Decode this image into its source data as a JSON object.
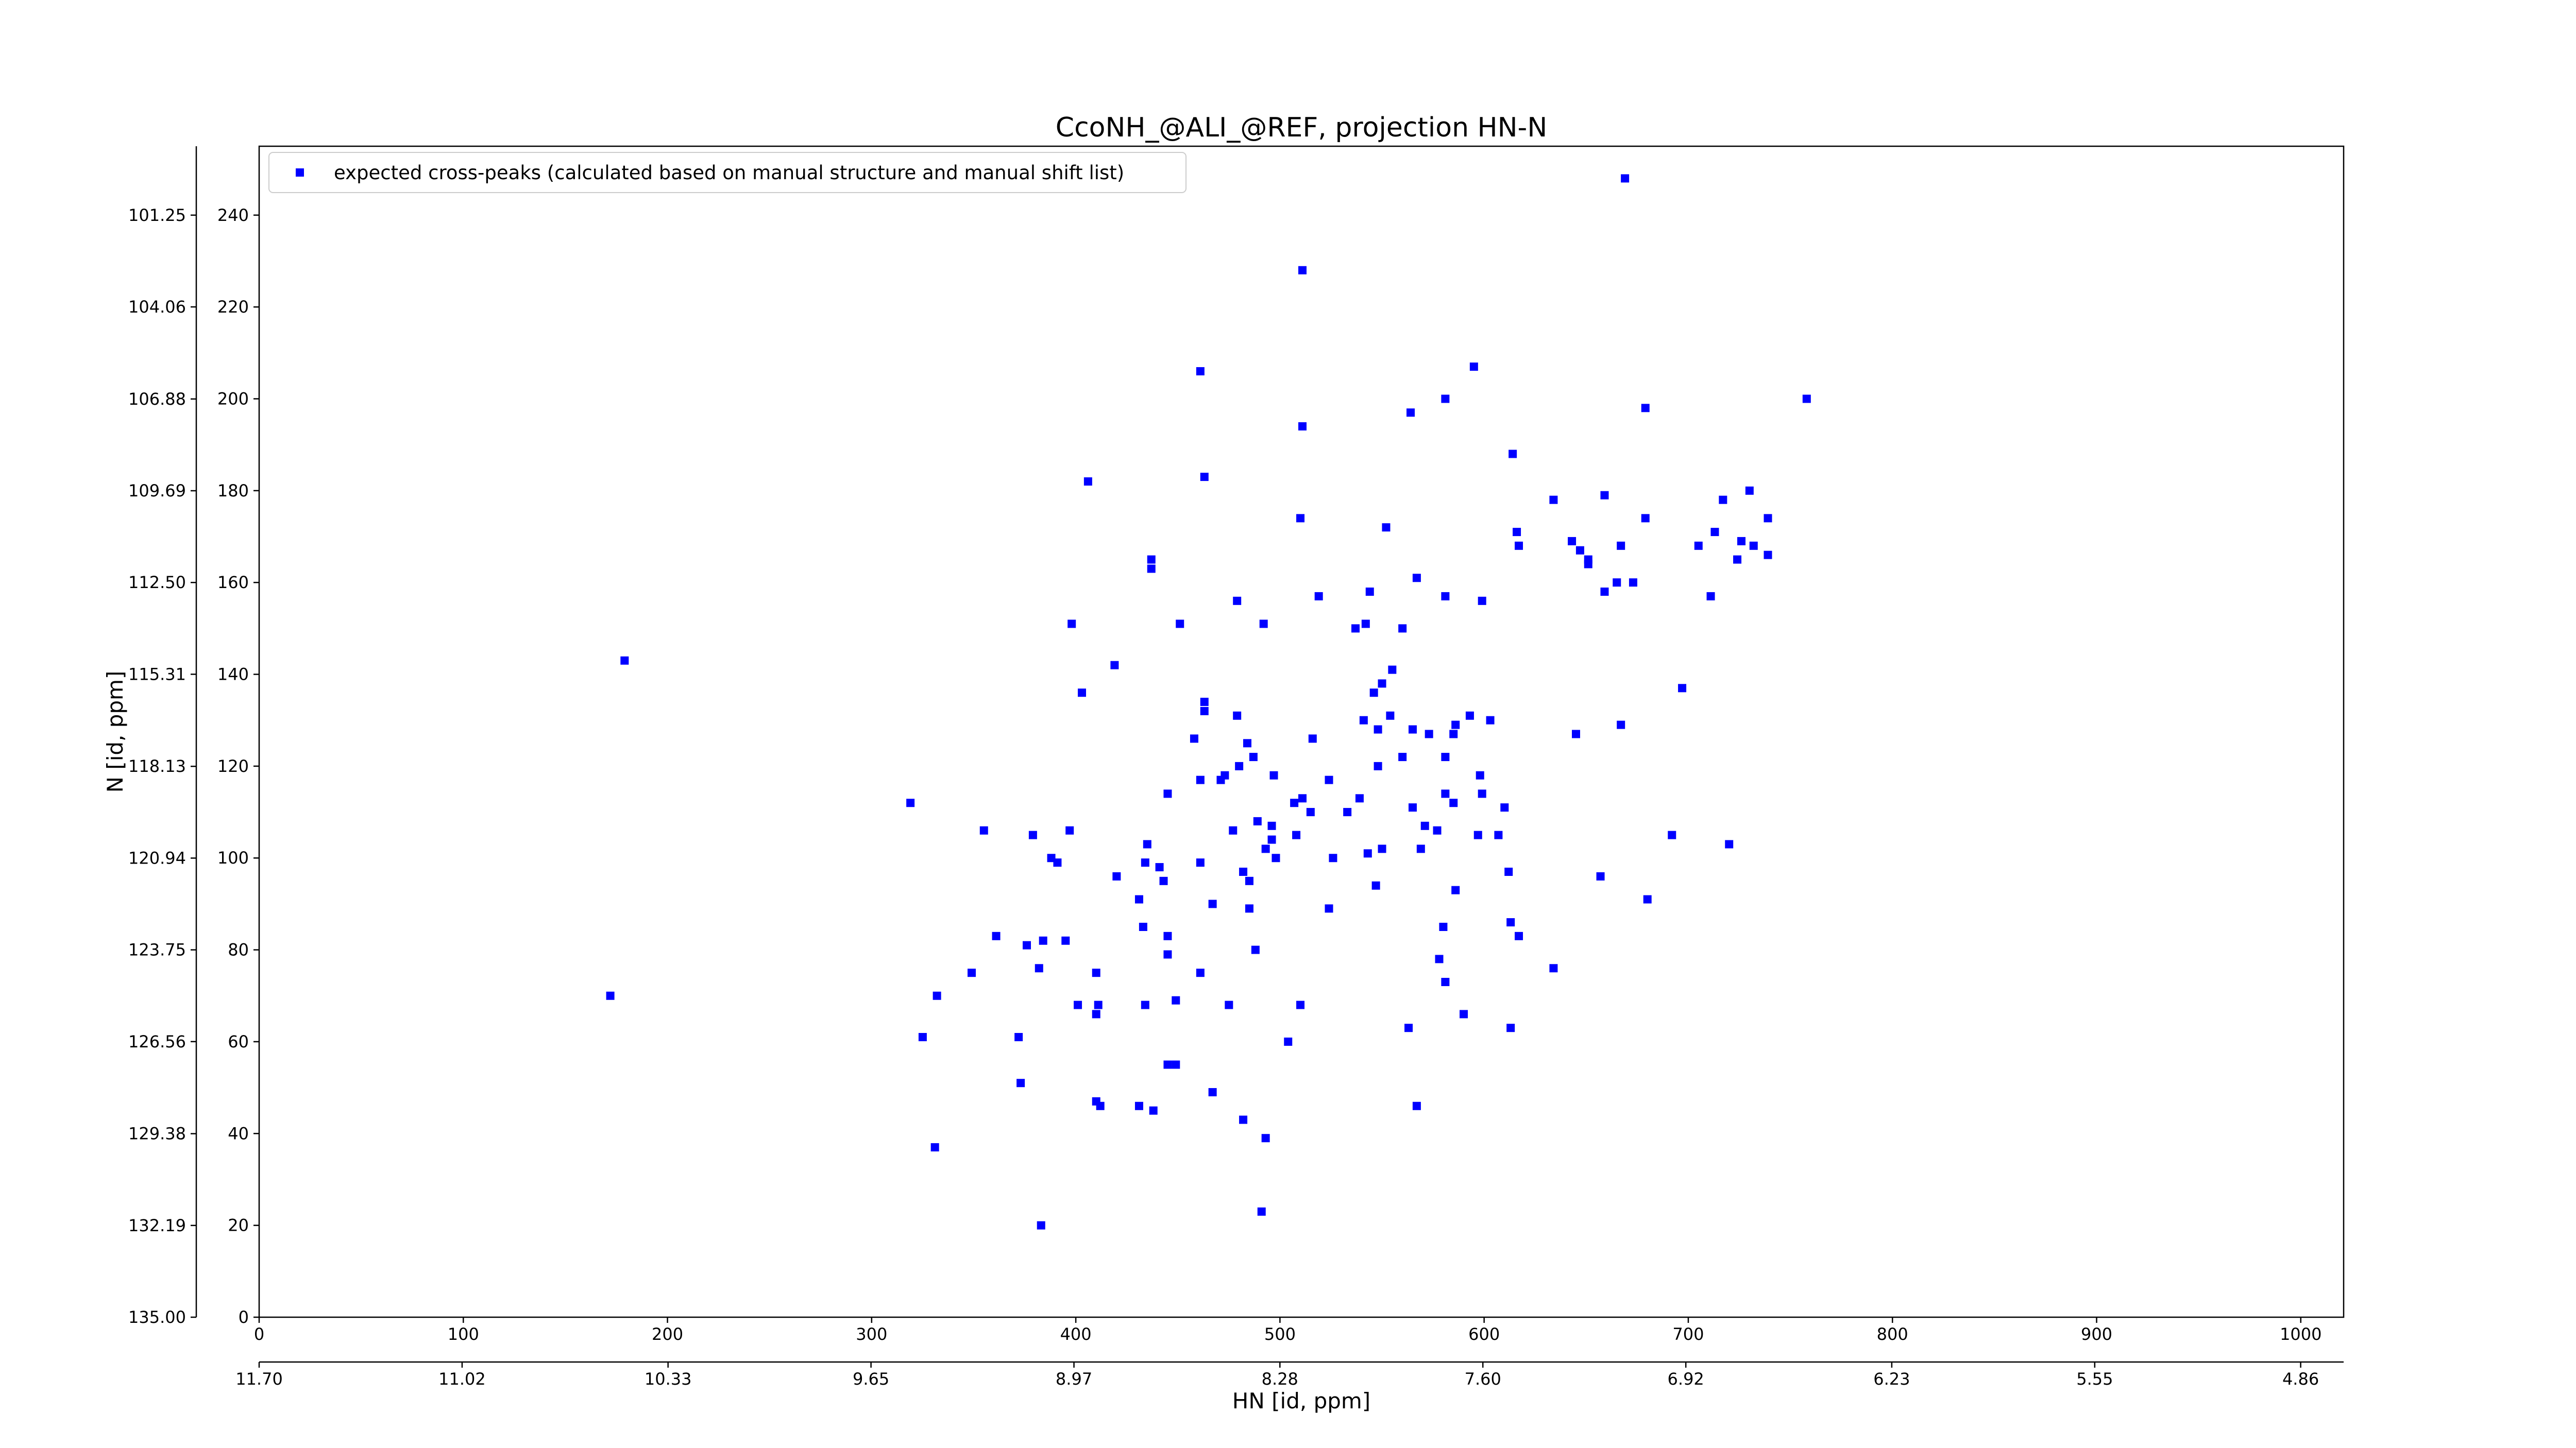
{
  "chart_data": {
    "type": "scatter",
    "title": "CcoNH_@ALI_@REF, projection HN-N",
    "x_label": "HN [id, ppm]",
    "y_label": "N [id, ppm]",
    "legend": "upper left",
    "xlim": [
      0,
      1021
    ],
    "ylim": [
      0,
      255
    ],
    "xticks": [
      0,
      100,
      200,
      300,
      400,
      500,
      600,
      700,
      800,
      900,
      1000
    ],
    "yticks": [
      0,
      20,
      40,
      60,
      80,
      100,
      120,
      140,
      160,
      180,
      200,
      220,
      240
    ],
    "x2lim": [
      11.7,
      4.716
    ],
    "x2ticks": [
      {
        "value": 11.7,
        "label": "11.70"
      },
      11.02,
      10.33,
      9.65,
      8.97,
      8.28,
      {
        "value": 7.6,
        "label": "7.60"
      },
      6.92,
      6.23,
      5.55,
      4.86
    ],
    "y2lim": [
      135.0,
      99.14
    ],
    "y2ticks": [
      101.25,
      104.06,
      106.88,
      109.69,
      {
        "value": 112.5,
        "label": "112.50"
      },
      115.31,
      118.13,
      120.94,
      123.75,
      126.56,
      129.38,
      132.19,
      {
        "value": 135.0,
        "label": "135.00"
      }
    ],
    "series": [
      {
        "name": "expected cross-peaks (calculated based on manual structure and manual shift list)",
        "color": "#0000ff",
        "x": [
          669,
          511,
          461,
          595,
          581,
          564,
          679,
          511,
          758,
          614,
          463,
          406,
          510,
          552,
          634,
          616,
          659,
          617,
          643,
          647,
          651,
          667,
          679,
          717,
          730,
          739,
          713,
          705,
          726,
          732,
          724,
          739,
          651,
          437,
          437,
          479,
          519,
          544,
          567,
          581,
          599,
          659,
          673,
          665,
          711,
          451,
          492,
          398,
          537,
          542,
          560,
          419,
          403,
          179,
          555,
          550,
          546,
          697,
          463,
          463,
          479,
          516,
          541,
          548,
          554,
          565,
          573,
          586,
          593,
          603,
          585,
          645,
          667,
          458,
          484,
          487,
          480,
          473,
          461,
          445,
          471,
          497,
          524,
          548,
          560,
          581,
          598,
          581,
          585,
          599,
          610,
          607,
          597,
          565,
          571,
          569,
          511,
          515,
          507,
          533,
          539,
          489,
          477,
          493,
          496,
          496,
          508,
          526,
          543,
          550,
          319,
          355,
          397,
          379,
          388,
          391,
          435,
          420,
          434,
          441,
          443,
          461,
          485,
          482,
          498,
          547,
          586,
          612,
          692,
          720,
          657,
          680,
          431,
          433,
          467,
          485,
          524,
          613,
          580,
          617,
          361,
          384,
          395,
          376,
          349,
          382,
          445,
          445,
          410,
          488,
          578,
          634,
          461,
          332,
          401,
          411,
          434,
          449,
          475,
          510,
          581,
          590,
          325,
          372,
          410,
          445,
          504,
          563,
          613,
          373,
          467,
          449,
          410,
          412,
          431,
          438,
          482,
          567,
          493,
          331,
          491,
          383,
          172,
          577
        ],
        "y": [
          248,
          228,
          206,
          207,
          200,
          197,
          198,
          194,
          200,
          188,
          183,
          182,
          174,
          172,
          178,
          171,
          179,
          168,
          169,
          167,
          165,
          168,
          174,
          178,
          180,
          174,
          171,
          168,
          169,
          168,
          165,
          166,
          164,
          165,
          163,
          156,
          157,
          158,
          161,
          157,
          156,
          158,
          160,
          160,
          157,
          151,
          151,
          151,
          150,
          151,
          150,
          142,
          136,
          143,
          141,
          138,
          136,
          137,
          134,
          132,
          131,
          126,
          130,
          128,
          131,
          128,
          127,
          129,
          131,
          130,
          127,
          127,
          129,
          126,
          125,
          122,
          120,
          118,
          117,
          114,
          117,
          118,
          117,
          120,
          122,
          122,
          118,
          114,
          112,
          114,
          111,
          105,
          105,
          111,
          107,
          102,
          113,
          110,
          112,
          110,
          113,
          108,
          106,
          102,
          107,
          104,
          105,
          100,
          101,
          102,
          112,
          106,
          106,
          105,
          100,
          99,
          103,
          96,
          99,
          98,
          95,
          99,
          95,
          97,
          100,
          94,
          93,
          97,
          105,
          103,
          96,
          91,
          91,
          85,
          90,
          89,
          89,
          86,
          85,
          83,
          83,
          82,
          82,
          81,
          75,
          76,
          83,
          79,
          75,
          80,
          78,
          76,
          75,
          70,
          68,
          68,
          68,
          69,
          68,
          68,
          73,
          66,
          61,
          61,
          66,
          55,
          60,
          63,
          63,
          51,
          49,
          55,
          47,
          46,
          46,
          45,
          43,
          46,
          39,
          37,
          23,
          20,
          70,
          106
        ]
      }
    ]
  }
}
